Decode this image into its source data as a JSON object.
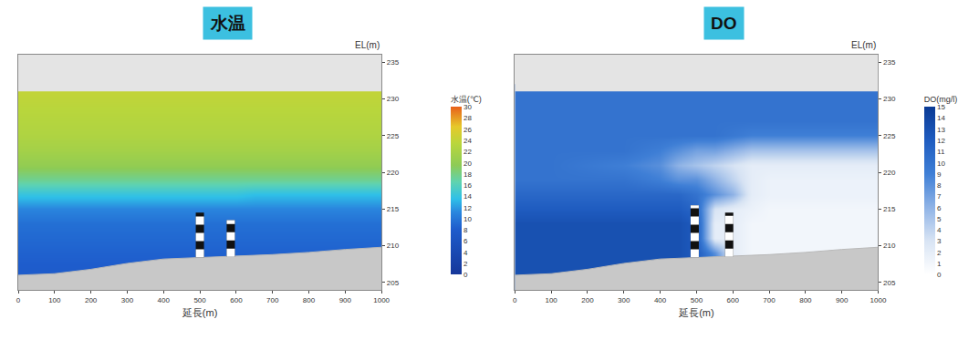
{
  "chart_data": [
    {
      "type": "heatmap",
      "title": "水温",
      "xlabel": "延長(m)",
      "ylabel": "EL(m)",
      "x": [
        0,
        100,
        200,
        300,
        400,
        450,
        500,
        550,
        600,
        650,
        700,
        800,
        900,
        1000
      ],
      "y": [
        205,
        207,
        209,
        211,
        213,
        215,
        217,
        219,
        221,
        223,
        225,
        227,
        229,
        231
      ],
      "z": [
        [
          8,
          8,
          8,
          8,
          8,
          8,
          8,
          8,
          8,
          8,
          8,
          8,
          8,
          8
        ],
        [
          8,
          8,
          8,
          8,
          8,
          8,
          8,
          8,
          8,
          8,
          8,
          8,
          8,
          8
        ],
        [
          8.5,
          8.5,
          8.5,
          8.5,
          8.5,
          8.5,
          8.5,
          8.5,
          8.5,
          8.5,
          8.5,
          8.5,
          8.5,
          8.5
        ],
        [
          9,
          9,
          9,
          9,
          9,
          9,
          9,
          9,
          9,
          9,
          9,
          9,
          9,
          9
        ],
        [
          9.5,
          9.5,
          9.5,
          9.5,
          9.5,
          9.5,
          9.5,
          9.5,
          9.5,
          9.5,
          9.5,
          9.5,
          9.5,
          9.5
        ],
        [
          11,
          11,
          11,
          11,
          11,
          11,
          11,
          11,
          11,
          11,
          11,
          11,
          11,
          11
        ],
        [
          14,
          14,
          14,
          14,
          14,
          14,
          14,
          14,
          14,
          13.5,
          13.5,
          13.5,
          13.5,
          13.5
        ],
        [
          17.5,
          17.5,
          17.5,
          17.5,
          17.5,
          17.5,
          17.5,
          17.5,
          17.5,
          17.5,
          17.5,
          17.5,
          17.5,
          17.5
        ],
        [
          20,
          20,
          20,
          20,
          20,
          20,
          20,
          20,
          20,
          20,
          20,
          20,
          20,
          20
        ],
        [
          21.5,
          21.5,
          21.5,
          21.5,
          21.5,
          21.5,
          21.5,
          21.5,
          21.5,
          21.5,
          21.5,
          21.5,
          21.5,
          21.5
        ],
        [
          22.5,
          22.5,
          22.5,
          22.5,
          22.5,
          22.5,
          22.5,
          22.5,
          22.5,
          22.5,
          22.5,
          22.5,
          22.5,
          22.5
        ],
        [
          23,
          23,
          23,
          23,
          23,
          23,
          23,
          23,
          23,
          23,
          23,
          23,
          23,
          23
        ],
        [
          23.5,
          23.5,
          23.5,
          23.5,
          23.5,
          23.5,
          23.5,
          23.5,
          23.5,
          23.5,
          23.5,
          23.5,
          23.5,
          23.5
        ],
        [
          24,
          24,
          24,
          24,
          24,
          24,
          24,
          24,
          24,
          24,
          24,
          24,
          24,
          24
        ]
      ],
      "xlim": [
        0,
        1000
      ],
      "xticks": [
        0,
        100,
        200,
        300,
        400,
        500,
        600,
        700,
        800,
        900,
        1000
      ],
      "ylim": [
        204,
        236
      ],
      "yticks": [
        205,
        210,
        215,
        220,
        225,
        230,
        235
      ],
      "colorbar": {
        "title": "水温(℃)",
        "range": [
          0,
          30
        ],
        "ticks": [
          0,
          2,
          4,
          6,
          8,
          10,
          12,
          14,
          16,
          18,
          20,
          22,
          24,
          26,
          28,
          30
        ]
      },
      "water_surface": 231,
      "bed": {
        "x": [
          0,
          100,
          200,
          300,
          400,
          500,
          600,
          700,
          800,
          900,
          1000
        ],
        "y": [
          206,
          206.2,
          206.8,
          207.6,
          208.2,
          208.4,
          208.6,
          208.8,
          209.1,
          209.5,
          209.8
        ]
      },
      "structures": [
        {
          "x": 500,
          "bottom": 208.4,
          "top": 214.5
        },
        {
          "x": 585,
          "bottom": 208.5,
          "top": 213.5
        }
      ]
    },
    {
      "type": "heatmap",
      "title": "DO",
      "xlabel": "延長(m)",
      "ylabel": "EL(m)",
      "x": [
        0,
        100,
        200,
        300,
        400,
        450,
        500,
        550,
        600,
        650,
        700,
        800,
        900,
        1000
      ],
      "y": [
        205,
        207,
        209,
        211,
        213,
        215,
        217,
        219,
        221,
        223,
        225,
        227,
        229,
        231
      ],
      "z": [
        [
          13,
          13,
          13,
          13,
          13,
          13,
          12,
          10,
          3,
          1,
          1,
          1,
          1,
          1
        ],
        [
          13,
          13,
          13,
          13,
          13,
          13,
          12,
          10,
          3,
          1,
          1,
          1,
          1,
          1
        ],
        [
          13,
          13,
          13,
          13,
          13,
          13,
          12,
          8,
          2,
          1,
          1,
          1,
          1,
          1
        ],
        [
          13,
          13,
          13,
          13,
          13,
          13,
          12,
          2,
          2,
          1,
          1,
          1,
          1,
          1
        ],
        [
          13,
          13,
          13,
          13,
          13,
          13,
          12,
          2,
          2,
          1,
          1,
          1,
          1,
          1
        ],
        [
          12,
          12,
          12,
          12,
          12,
          12,
          11,
          3,
          2,
          1.5,
          1,
          1,
          1,
          1
        ],
        [
          11,
          11,
          11,
          11,
          11,
          11,
          10,
          8,
          6,
          2,
          1.5,
          1.5,
          1.5,
          1.5
        ],
        [
          10,
          10,
          10,
          10,
          9,
          8,
          8,
          6,
          4,
          2,
          1.5,
          1.5,
          1.5,
          1.5
        ],
        [
          10,
          10,
          9.5,
          9,
          8,
          6,
          5,
          4,
          3,
          2,
          2,
          2,
          2,
          2
        ],
        [
          10,
          10,
          10,
          10,
          9,
          8,
          7,
          7,
          6,
          5,
          5,
          5,
          5,
          5
        ],
        [
          10,
          10,
          10,
          10,
          10,
          10,
          10,
          10,
          9.5,
          9,
          9,
          9,
          9,
          9
        ],
        [
          10,
          10,
          10,
          10,
          10,
          10,
          10,
          10,
          10,
          10,
          10,
          10,
          10,
          10
        ],
        [
          10,
          10,
          10,
          10,
          10,
          10,
          10,
          10,
          10,
          10,
          10,
          10,
          10,
          10
        ],
        [
          10,
          10,
          10,
          10,
          10,
          10,
          10,
          10,
          10,
          10,
          10,
          10,
          10,
          10
        ]
      ],
      "xlim": [
        0,
        1000
      ],
      "xticks": [
        0,
        100,
        200,
        300,
        400,
        500,
        600,
        700,
        800,
        900,
        1000
      ],
      "ylim": [
        204,
        236
      ],
      "yticks": [
        205,
        210,
        215,
        220,
        225,
        230,
        235
      ],
      "colorbar": {
        "title": "DO(mg/l)",
        "range": [
          0,
          15
        ],
        "ticks": [
          0,
          1,
          2,
          3,
          4,
          5,
          6,
          7,
          8,
          9,
          10,
          11,
          12,
          13,
          14,
          15
        ]
      },
      "water_surface": 231,
      "bed": {
        "x": [
          0,
          100,
          200,
          300,
          400,
          500,
          600,
          700,
          800,
          900,
          1000
        ],
        "y": [
          206,
          206.2,
          206.8,
          207.6,
          208.2,
          208.4,
          208.6,
          208.8,
          209.1,
          209.5,
          209.8
        ]
      },
      "structures": [
        {
          "x": 495,
          "bottom": 208.4,
          "top": 215.5
        },
        {
          "x": 590,
          "bottom": 208.5,
          "top": 214.5
        }
      ]
    }
  ]
}
